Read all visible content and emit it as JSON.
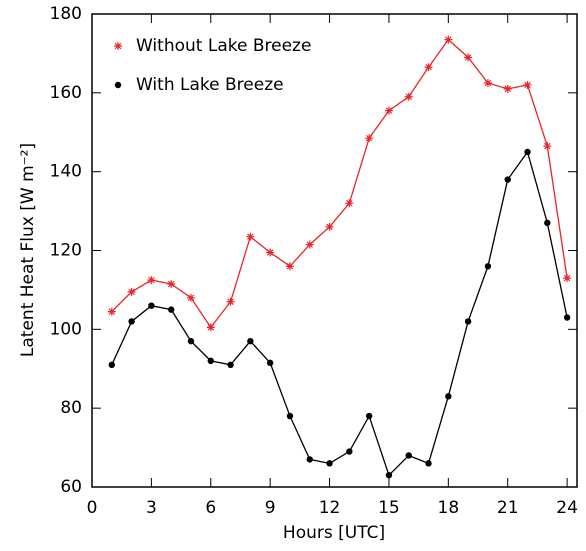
{
  "chart_data": {
    "type": "line",
    "x_label": "Hours [UTC]",
    "y_label": "Latent Heat Flux [W m⁻²]",
    "x": [
      1,
      2,
      3,
      4,
      5,
      6,
      7,
      8,
      9,
      10,
      11,
      12,
      13,
      14,
      15,
      16,
      17,
      18,
      19,
      20,
      21,
      22,
      23,
      24
    ],
    "series": [
      {
        "name": "Without Lake Breeze",
        "color": "#e8262a",
        "marker": "asterisk",
        "values": [
          104.5,
          109.5,
          112.5,
          111.5,
          108,
          100.5,
          107,
          123.5,
          119.5,
          116,
          121.5,
          126,
          132,
          148.5,
          155.5,
          159,
          166.5,
          173.5,
          169,
          162.5,
          161,
          162,
          146.5,
          113
        ]
      },
      {
        "name": "With Lake Breeze",
        "color": "#000000",
        "marker": "circle",
        "values": [
          91,
          102,
          106,
          105,
          97,
          92,
          91,
          97,
          91.5,
          78,
          67,
          66,
          69,
          78,
          63,
          68,
          66,
          83,
          102,
          116,
          138,
          145,
          127,
          103
        ]
      }
    ],
    "xlim": [
      0,
      24.5
    ],
    "xticks": [
      0,
      3,
      6,
      9,
      12,
      15,
      18,
      21,
      24
    ],
    "ylim": [
      60,
      180
    ],
    "yticks": [
      60,
      80,
      100,
      120,
      140,
      160,
      180
    ],
    "legend": "upper left"
  }
}
